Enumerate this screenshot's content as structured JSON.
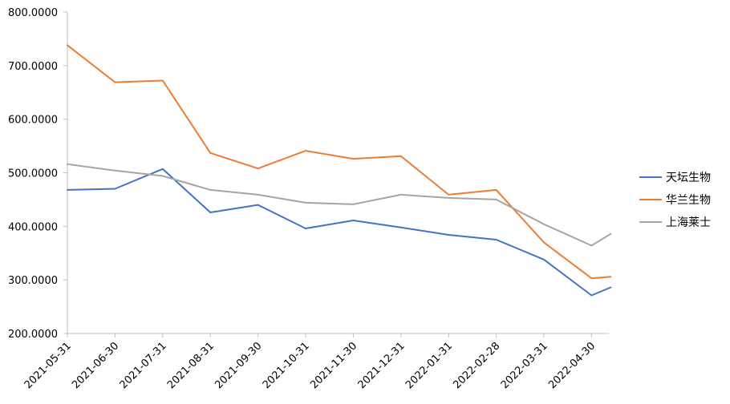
{
  "chart_data": {
    "type": "line",
    "title": "",
    "xlabel": "",
    "ylabel": "",
    "ylim": [
      200,
      800
    ],
    "yticks": [
      200,
      300,
      400,
      500,
      600,
      700,
      800
    ],
    "ytick_labels": [
      "200.0000",
      "300.0000",
      "400.0000",
      "500.0000",
      "600.0000",
      "700.0000",
      "800.0000"
    ],
    "grid": false,
    "legend_position": "right",
    "x": [
      "2021-05-31",
      "2021-06-30",
      "2021-07-31",
      "2021-08-31",
      "2021-09-30",
      "2021-10-31",
      "2021-11-30",
      "2021-12-31",
      "2022-01-31",
      "2022-02-28",
      "2022-03-31",
      "2022-04-30",
      "2022-05-13"
    ],
    "xtick_labels": [
      "2021-05-31",
      "2021-06-30",
      "2021-07-31",
      "2021-08-31",
      "2021-09-30",
      "2021-10-31",
      "2021-11-30",
      "2021-12-31",
      "2022-01-31",
      "2022-02-28",
      "2022-03-31",
      "2022-04-30"
    ],
    "series": [
      {
        "name": "天坛生物",
        "color": "#4472c4",
        "values": [
          468,
          470,
          507,
          426,
          440,
          396,
          411,
          398,
          384,
          375,
          338,
          271,
          286
        ]
      },
      {
        "name": "华兰生物",
        "color": "#ed7d31",
        "values": [
          738,
          669,
          672,
          537,
          508,
          541,
          526,
          531,
          459,
          468,
          370,
          303,
          306
        ]
      },
      {
        "name": "上海莱士",
        "color": "#a5a5a5",
        "values": [
          516,
          504,
          494,
          468,
          459,
          444,
          441,
          459,
          453,
          450,
          404,
          364,
          386
        ]
      }
    ]
  }
}
